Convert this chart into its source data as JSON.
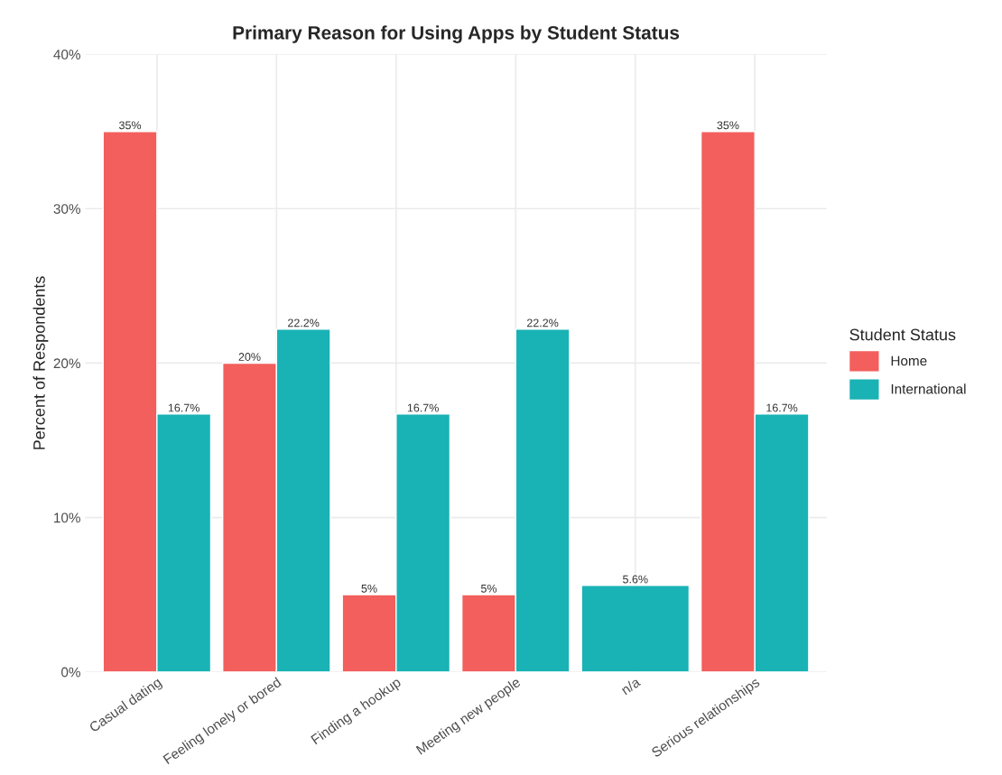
{
  "chart_data": {
    "type": "bar",
    "title": "Primary Reason for Using Apps by Student Status",
    "ylabel": "Percent of Respondents",
    "legend_title": "Student Status",
    "categories": [
      "Casual dating",
      "Feeling lonely or bored",
      "Finding a hookup",
      "Meeting new people",
      "n/a",
      "Serious relationships"
    ],
    "series": [
      {
        "name": "Home",
        "color": "#f25f5c",
        "values": [
          35,
          20,
          5,
          5,
          null,
          35
        ],
        "value_labels": [
          "35%",
          "20%",
          "5%",
          "5%",
          null,
          "35%"
        ]
      },
      {
        "name": "International",
        "color": "#19b2b5",
        "values": [
          16.7,
          22.2,
          16.7,
          22.2,
          5.6,
          16.7
        ],
        "value_labels": [
          "16.7%",
          "22.2%",
          "16.7%",
          "22.2%",
          "5.6%",
          "16.7%"
        ]
      }
    ],
    "ylim": [
      0,
      40
    ],
    "yticks": [
      {
        "value": 0,
        "label": "0%"
      },
      {
        "value": 10,
        "label": "10%"
      },
      {
        "value": 20,
        "label": "20%"
      },
      {
        "value": 30,
        "label": "30%"
      },
      {
        "value": 40,
        "label": "40%"
      }
    ],
    "grid": true,
    "legend": "right"
  }
}
